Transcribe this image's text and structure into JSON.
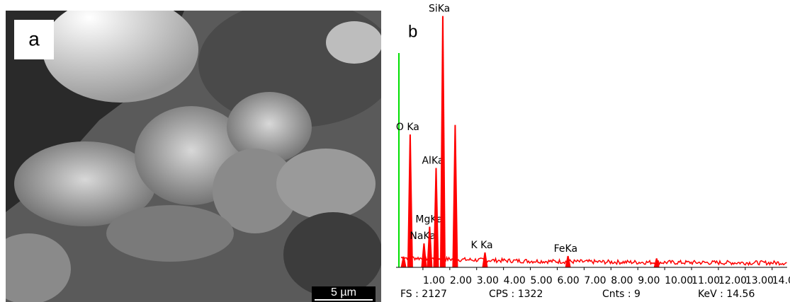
{
  "panel_a": {
    "label": "a",
    "scale_bar": "5 µm"
  },
  "chart_data": {
    "type": "spectrum",
    "panel_label": "b",
    "x": [
      0.28,
      0.525,
      1.04,
      1.25,
      1.49,
      1.74,
      2.2,
      3.31,
      6.4,
      9.7
    ],
    "values": [
      90,
      1110,
      200,
      340,
      830,
      2100,
      1190,
      125,
      95,
      75
    ],
    "labels": [
      null,
      "O Ka",
      "NaKa",
      "MgKa",
      "AlKa",
      "SiKa",
      null,
      "K Ka",
      "FeKa",
      null
    ],
    "color": "#ff0000",
    "marker_color": "#00e000",
    "xlim": [
      0,
      14.56
    ],
    "ylim": [
      0,
      2127
    ],
    "xticks": [
      {
        "value": 1,
        "label": "1.00"
      },
      {
        "value": 2,
        "label": "2.00"
      },
      {
        "value": 3,
        "label": "3.00"
      },
      {
        "value": 4,
        "label": "4.00"
      },
      {
        "value": 5,
        "label": "5.00"
      },
      {
        "value": 6,
        "label": "6.00"
      },
      {
        "value": 7,
        "label": "7.00"
      },
      {
        "value": 8,
        "label": "8.00"
      },
      {
        "value": 9,
        "label": "9.00"
      },
      {
        "value": 10,
        "label": "10.00"
      },
      {
        "value": 11,
        "label": "11.00"
      },
      {
        "value": 12,
        "label": "12.00"
      },
      {
        "value": 13,
        "label": "13.00"
      },
      {
        "value": 14,
        "label": "14.00"
      }
    ],
    "footer": [
      "FS : 2127",
      "CPS : 1322",
      "Cnts : 9",
      "KeV : 14.56"
    ]
  }
}
